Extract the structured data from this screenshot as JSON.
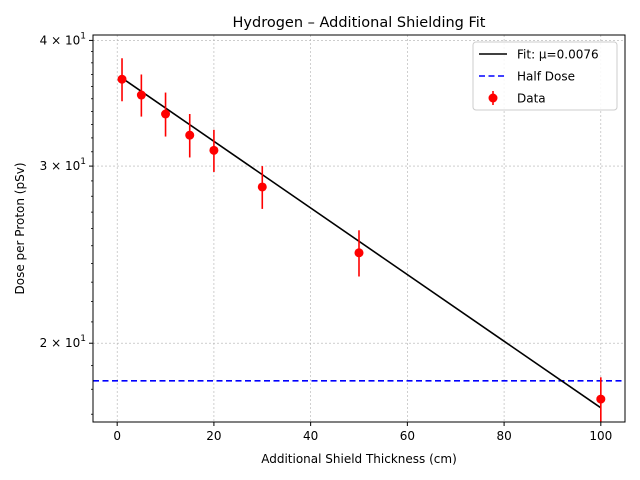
{
  "chart_data": {
    "type": "scatter",
    "title": "Hydrogen – Additional Shielding Fit",
    "xlabel": "Additional Shield Thickness (cm)",
    "ylabel": "Dose per Proton (pSv)",
    "xlim": [
      -5,
      105
    ],
    "ylim": [
      16.7,
      40.5
    ],
    "yscale": "log",
    "grid": true,
    "legend_position": "top-right",
    "xticks": [
      0,
      20,
      40,
      60,
      80,
      100
    ],
    "yticks": [
      {
        "value": 20,
        "label_base": "2 × 10",
        "label_exp": "1"
      },
      {
        "value": 30,
        "label_base": "3 × 10",
        "label_exp": "1"
      },
      {
        "value": 40,
        "label_base": "4 × 10",
        "label_exp": "1"
      }
    ],
    "series": [
      {
        "name": "Data",
        "kind": "errorbar",
        "color": "#ff0000",
        "x": [
          1,
          5,
          10,
          15,
          20,
          30,
          50,
          100
        ],
        "y": [
          36.6,
          35.3,
          33.8,
          32.2,
          31.1,
          28.6,
          24.6,
          17.6
        ],
        "yerr": [
          1.8,
          1.7,
          1.7,
          1.6,
          1.5,
          1.4,
          1.3,
          0.9
        ]
      },
      {
        "name": "Fit: µ=0.0076",
        "kind": "line",
        "color": "#000000",
        "style": "solid",
        "x": [
          1,
          100
        ],
        "y": [
          36.7,
          17.25
        ]
      },
      {
        "name": "Half Dose",
        "kind": "hline",
        "color": "#0000ff",
        "style": "dashed",
        "y": 18.35
      }
    ]
  }
}
